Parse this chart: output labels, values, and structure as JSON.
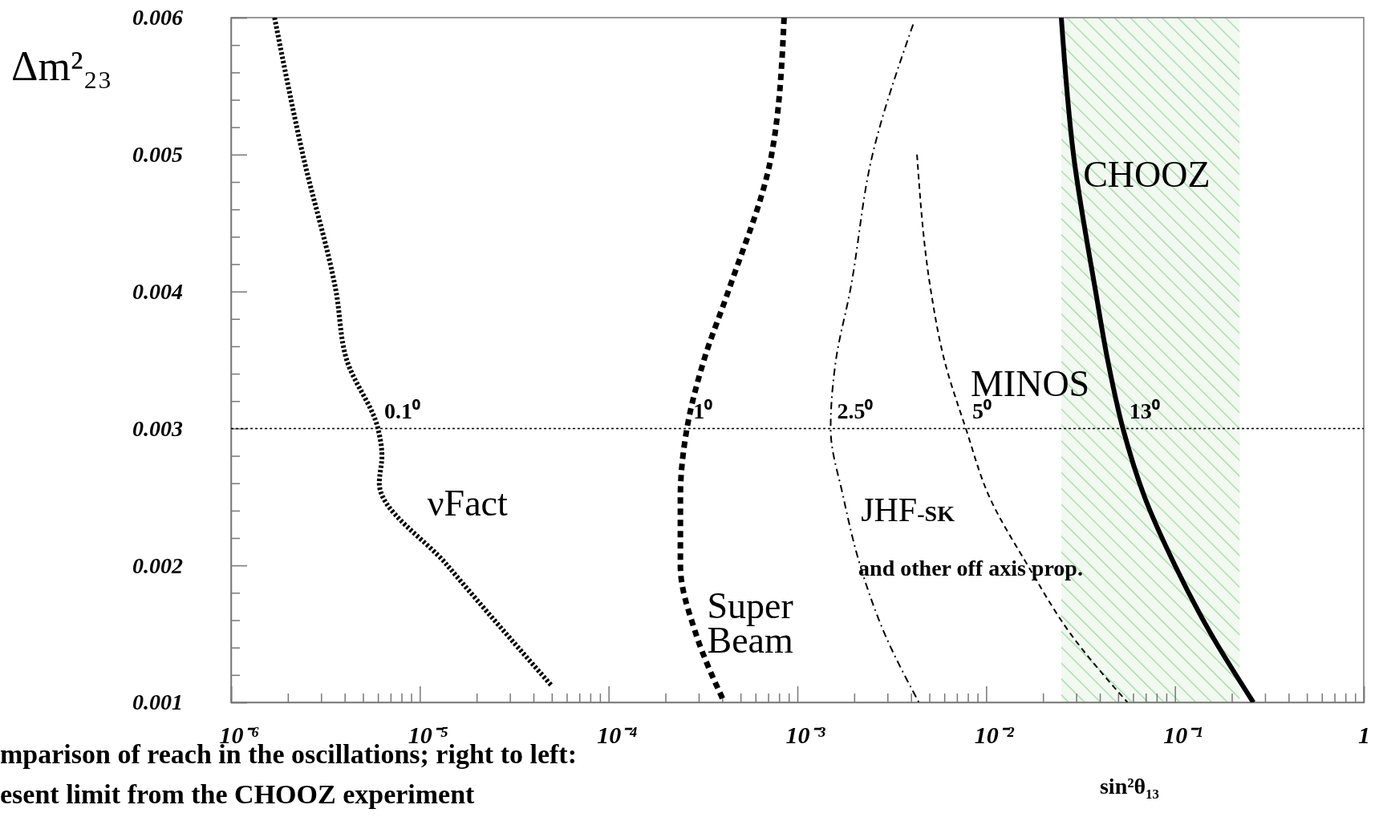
{
  "chart_data": {
    "type": "line",
    "xlabel": "sin²θ₁₃",
    "ylabel": "Δm²₂₃",
    "log": "x",
    "grid": false,
    "xlim": [
      1e-06,
      1
    ],
    "ylim": [
      0.001,
      0.006
    ],
    "xticks": [
      {
        "value": 1e-06,
        "label": "10⁻⁶"
      },
      {
        "value": 2e-06,
        "label": null
      },
      {
        "value": 3e-06,
        "label": null
      },
      {
        "value": 4e-06,
        "label": null
      },
      {
        "value": 5e-06,
        "label": null
      },
      {
        "value": 6e-06,
        "label": null
      },
      {
        "value": 7e-06,
        "label": null
      },
      {
        "value": 8e-06,
        "label": null
      },
      {
        "value": 9e-06,
        "label": null
      },
      {
        "value": 1e-05,
        "label": "10⁻⁵"
      },
      {
        "value": 2e-05,
        "label": null
      },
      {
        "value": 3e-05,
        "label": null
      },
      {
        "value": 4e-05,
        "label": null
      },
      {
        "value": 5e-05,
        "label": null
      },
      {
        "value": 6e-05,
        "label": null
      },
      {
        "value": 7e-05,
        "label": null
      },
      {
        "value": 8e-05,
        "label": null
      },
      {
        "value": 9e-05,
        "label": null
      },
      {
        "value": 0.0001,
        "label": "10⁻⁴"
      },
      {
        "value": 0.0002,
        "label": null
      },
      {
        "value": 0.0003,
        "label": null
      },
      {
        "value": 0.0004,
        "label": null
      },
      {
        "value": 0.0005,
        "label": null
      },
      {
        "value": 0.0006,
        "label": null
      },
      {
        "value": 0.0007,
        "label": null
      },
      {
        "value": 0.0008,
        "label": null
      },
      {
        "value": 0.0009,
        "label": null
      },
      {
        "value": 0.001,
        "label": "10⁻³"
      },
      {
        "value": 0.002,
        "label": null
      },
      {
        "value": 0.003,
        "label": null
      },
      {
        "value": 0.004,
        "label": null
      },
      {
        "value": 0.005,
        "label": null
      },
      {
        "value": 0.006,
        "label": null
      },
      {
        "value": 0.007,
        "label": null
      },
      {
        "value": 0.008,
        "label": null
      },
      {
        "value": 0.009,
        "label": null
      },
      {
        "value": 0.01,
        "label": "10⁻²"
      },
      {
        "value": 0.02,
        "label": null
      },
      {
        "value": 0.03,
        "label": null
      },
      {
        "value": 0.04,
        "label": null
      },
      {
        "value": 0.05,
        "label": null
      },
      {
        "value": 0.06,
        "label": null
      },
      {
        "value": 0.07,
        "label": null
      },
      {
        "value": 0.08,
        "label": null
      },
      {
        "value": 0.09,
        "label": null
      },
      {
        "value": 0.1,
        "label": "10⁻¹"
      },
      {
        "value": 0.2,
        "label": null
      },
      {
        "value": 0.3,
        "label": null
      },
      {
        "value": 0.4,
        "label": null
      },
      {
        "value": 0.5,
        "label": null
      },
      {
        "value": 0.6,
        "label": null
      },
      {
        "value": 0.7,
        "label": null
      },
      {
        "value": 0.8,
        "label": null
      },
      {
        "value": 0.9,
        "label": null
      },
      1
    ],
    "yticks": [
      0.001,
      {
        "value": 0.0012,
        "label": null
      },
      {
        "value": 0.0014,
        "label": null
      },
      {
        "value": 0.0016,
        "label": null
      },
      {
        "value": 0.0018,
        "label": null
      },
      0.002,
      {
        "value": 0.0022,
        "label": null
      },
      {
        "value": 0.0024,
        "label": null
      },
      {
        "value": 0.0026,
        "label": null
      },
      {
        "value": 0.0028,
        "label": null
      },
      0.003,
      {
        "value": 0.0032,
        "label": null
      },
      {
        "value": 0.0034,
        "label": null
      },
      {
        "value": 0.0036,
        "label": null
      },
      {
        "value": 0.0038,
        "label": null
      },
      0.004,
      {
        "value": 0.0042,
        "label": null
      },
      {
        "value": 0.0044,
        "label": null
      },
      {
        "value": 0.0046,
        "label": null
      },
      {
        "value": 0.0048,
        "label": null
      },
      0.005,
      {
        "value": 0.0052,
        "label": null
      },
      {
        "value": 0.0054,
        "label": null
      },
      {
        "value": 0.0056,
        "label": null
      },
      {
        "value": 0.0058,
        "label": null
      },
      0.006
    ],
    "series": [
      {
        "name": "νFact",
        "color": "#000000",
        "line_style": "dotted",
        "x": [
          1.7e-06,
          2.4e-06,
          3.6e-06,
          4.1e-06,
          6e-06,
          6.3e-06,
          6.1e-06,
          1.4e-05,
          5e-05
        ],
        "values": [
          0.006,
          0.005,
          0.004,
          0.0035,
          0.003,
          0.0028,
          0.0026,
          0.002,
          0.00112
        ]
      },
      {
        "name": "Super Beam",
        "color": "#000000",
        "line_style": "dashed",
        "x": [
          0.00085,
          0.00073,
          0.00043,
          0.00032,
          0.00026,
          0.00024,
          0.00024,
          0.00029,
          0.00041
        ],
        "values": [
          0.006,
          0.005,
          0.004,
          0.0035,
          0.003,
          0.0025,
          0.002,
          0.0015,
          0.001
        ]
      },
      {
        "name": "JHF-SK",
        "color": "#000000",
        "line_style": "dashed",
        "x": [
          0.0041,
          0.0025,
          0.0019,
          0.0016,
          0.0015,
          0.00175,
          0.00215,
          0.0029,
          0.0044
        ],
        "values": [
          0.00595,
          0.005,
          0.004,
          0.0035,
          0.003,
          0.0025,
          0.002,
          0.0015,
          0.001
        ]
      },
      {
        "name": "MINOS",
        "color": "#000000",
        "line_style": "dashed",
        "x": [
          0.0043,
          0.0051,
          0.006,
          0.0078,
          0.0104,
          0.0166,
          0.028,
          0.056
        ],
        "values": [
          0.005,
          0.004,
          0.0035,
          0.003,
          0.0025,
          0.002,
          0.0015,
          0.001
        ]
      },
      {
        "name": "CHOOZ",
        "color": "#000000",
        "line_style": "solid",
        "x": [
          0.025,
          0.029,
          0.038,
          0.044,
          0.053,
          0.069,
          0.1,
          0.155,
          0.26
        ],
        "values": [
          0.006,
          0.005,
          0.004,
          0.0035,
          0.003,
          0.0025,
          0.002,
          0.0015,
          0.001
        ]
      }
    ],
    "ref_lines": [
      {
        "axis": "y",
        "value": 0.003,
        "line_style": "dotted",
        "color": "#000000"
      }
    ],
    "bands": [
      {
        "axis": "x",
        "from": 0.025,
        "to": 0.22,
        "color": "#9fd89f"
      }
    ],
    "annotations": [
      {
        "text": "0.1⁰",
        "x": 6e-06,
        "y": 0.003
      },
      {
        "text": "1⁰",
        "x": 0.00026,
        "y": 0.003
      },
      {
        "text": "2.5⁰",
        "x": 0.0015,
        "y": 0.003
      },
      {
        "text": "5⁰",
        "x": 0.0078,
        "y": 0.003
      },
      {
        "text": "13⁰",
        "x": 0.053,
        "y": 0.003
      },
      "and other off axis prop.",
      "mparison of reach in the  oscillations; right to left:",
      "esent limit from the CHOOZ experiment"
    ]
  }
}
